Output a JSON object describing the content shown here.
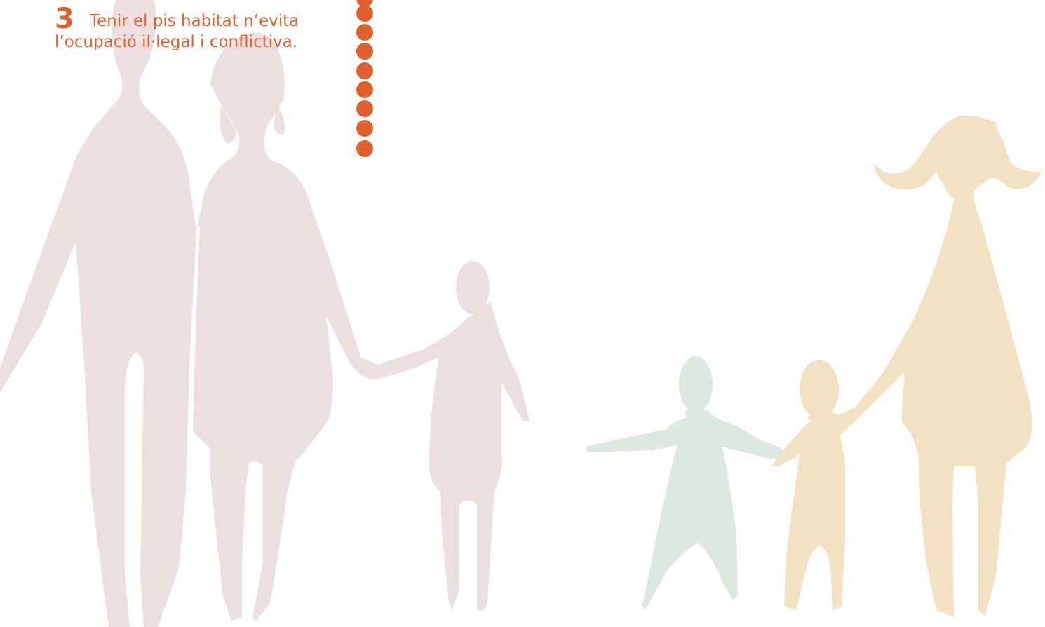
{
  "item": {
    "number": "3",
    "lines": [
      "Tenir el pis habitat n’evita",
      "l’ocupació il·legal i conflictiva."
    ]
  }
}
